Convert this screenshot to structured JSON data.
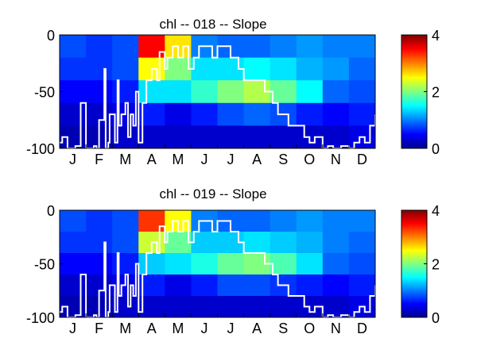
{
  "chart_data": [
    {
      "type": "heatmap",
      "title": "chl -- 018 -- Slope",
      "xlabel": "",
      "ylabel": "",
      "x_tick_labels": [
        "J",
        "F",
        "M",
        "A",
        "M",
        "J",
        "J",
        "A",
        "S",
        "O",
        "N",
        "D"
      ],
      "y_ticks": [
        0,
        -50,
        -100
      ],
      "ylim": [
        -100,
        0
      ],
      "colorbar": {
        "ticks": [
          0,
          2,
          4
        ],
        "range": [
          0,
          4
        ],
        "colormap": "jet"
      },
      "depth_bands_m": [
        0,
        -20,
        -40,
        -60,
        -80,
        -100
      ],
      "band_values": [
        [
          0.8,
          0.7,
          0.8,
          3.5,
          2.6,
          1.0,
          0.9,
          0.9,
          1.0,
          1.1,
          1.0,
          1.0
        ],
        [
          0.7,
          0.7,
          0.8,
          2.5,
          2.0,
          1.4,
          1.4,
          1.5,
          1.4,
          1.2,
          1.1,
          0.9
        ],
        [
          0.5,
          0.5,
          0.6,
          1.4,
          1.4,
          1.7,
          2.0,
          2.2,
          1.9,
          1.5,
          0.9,
          0.8
        ],
        [
          0.3,
          0.3,
          0.4,
          0.6,
          0.4,
          0.6,
          0.8,
          0.9,
          0.8,
          0.6,
          0.5,
          0.6
        ],
        [
          0.2,
          0.2,
          0.3,
          0.3,
          0.3,
          0.3,
          0.3,
          0.3,
          0.3,
          0.3,
          0.3,
          0.4
        ]
      ],
      "line_series": {
        "color": "#ffffff",
        "x_month": [
          0.0,
          0.1,
          0.3,
          0.6,
          0.8,
          1.0,
          1.3,
          1.4,
          1.5,
          1.7,
          1.75,
          1.85,
          1.9,
          2.0,
          2.1,
          2.2,
          2.25,
          2.35,
          2.5,
          2.6,
          2.7,
          2.8,
          2.9,
          3.0,
          3.15,
          3.3,
          3.5,
          3.7,
          3.8,
          4.0,
          4.1,
          4.3,
          4.5,
          4.7,
          4.9,
          5.1,
          5.3,
          5.6,
          5.8,
          6.0,
          6.2,
          6.5,
          6.8,
          7.0,
          7.2,
          7.5,
          7.8,
          8.1,
          8.3,
          8.5,
          8.7,
          9.0,
          9.3,
          9.5,
          9.7,
          10.0,
          10.2,
          10.4,
          10.7,
          11.0,
          11.2,
          11.4,
          11.6,
          11.8,
          12.0
        ],
        "y_depth": [
          -95,
          -90,
          -100,
          -98,
          -60,
          -100,
          -98,
          -100,
          -75,
          -30,
          -100,
          -95,
          -70,
          -70,
          -95,
          -40,
          -80,
          -70,
          -60,
          -90,
          -70,
          -80,
          -50,
          -95,
          -60,
          -40,
          -30,
          -40,
          -15,
          -30,
          -20,
          -10,
          -20,
          -10,
          -30,
          -20,
          -10,
          -10,
          -20,
          -10,
          -10,
          -20,
          -30,
          -40,
          -40,
          -40,
          -50,
          -60,
          -70,
          -70,
          -80,
          -80,
          -90,
          -95,
          -90,
          -100,
          -98,
          -100,
          -98,
          -100,
          -95,
          -90,
          -95,
          -80,
          -70
        ]
      }
    },
    {
      "type": "heatmap",
      "title": "chl -- 019 -- Slope",
      "xlabel": "",
      "ylabel": "",
      "x_tick_labels": [
        "J",
        "F",
        "M",
        "A",
        "M",
        "J",
        "J",
        "A",
        "S",
        "O",
        "N",
        "D"
      ],
      "y_ticks": [
        0,
        -50,
        -100
      ],
      "ylim": [
        -100,
        0
      ],
      "colorbar": {
        "ticks": [
          0,
          2,
          4
        ],
        "range": [
          0,
          4
        ],
        "colormap": "jet"
      },
      "depth_bands_m": [
        0,
        -20,
        -40,
        -60,
        -80,
        -100
      ],
      "band_values": [
        [
          0.8,
          0.7,
          0.8,
          3.3,
          2.5,
          1.0,
          0.9,
          0.9,
          1.0,
          1.1,
          1.0,
          1.0
        ],
        [
          0.7,
          0.7,
          0.8,
          2.3,
          1.9,
          1.3,
          1.3,
          1.4,
          1.3,
          1.2,
          1.0,
          0.9
        ],
        [
          0.5,
          0.5,
          0.6,
          1.3,
          1.4,
          1.6,
          1.9,
          2.0,
          1.8,
          1.4,
          0.9,
          0.8
        ],
        [
          0.3,
          0.3,
          0.4,
          0.6,
          0.4,
          0.6,
          0.8,
          0.8,
          0.7,
          0.6,
          0.5,
          0.6
        ],
        [
          0.2,
          0.2,
          0.3,
          0.3,
          0.3,
          0.3,
          0.3,
          0.3,
          0.3,
          0.3,
          0.3,
          0.4
        ]
      ],
      "line_series": {
        "color": "#ffffff",
        "x_month": [
          0.0,
          0.1,
          0.3,
          0.6,
          0.8,
          1.0,
          1.3,
          1.4,
          1.5,
          1.7,
          1.75,
          1.85,
          1.9,
          2.0,
          2.1,
          2.2,
          2.25,
          2.35,
          2.5,
          2.6,
          2.7,
          2.8,
          2.9,
          3.0,
          3.15,
          3.3,
          3.5,
          3.7,
          3.8,
          4.0,
          4.1,
          4.3,
          4.5,
          4.7,
          4.9,
          5.1,
          5.3,
          5.6,
          5.8,
          6.0,
          6.2,
          6.5,
          6.8,
          7.0,
          7.2,
          7.5,
          7.8,
          8.1,
          8.3,
          8.5,
          8.7,
          9.0,
          9.3,
          9.5,
          9.7,
          10.0,
          10.2,
          10.4,
          10.7,
          11.0,
          11.2,
          11.4,
          11.6,
          11.8,
          12.0
        ],
        "y_depth": [
          -95,
          -90,
          -100,
          -98,
          -60,
          -100,
          -98,
          -100,
          -75,
          -30,
          -100,
          -95,
          -70,
          -70,
          -95,
          -40,
          -80,
          -70,
          -60,
          -90,
          -70,
          -80,
          -50,
          -95,
          -60,
          -40,
          -30,
          -40,
          -15,
          -30,
          -20,
          -10,
          -20,
          -10,
          -30,
          -20,
          -10,
          -10,
          -20,
          -10,
          -10,
          -20,
          -30,
          -40,
          -40,
          -40,
          -50,
          -60,
          -70,
          -70,
          -80,
          -80,
          -90,
          -95,
          -90,
          -100,
          -98,
          -100,
          -98,
          -100,
          -95,
          -90,
          -95,
          -80,
          -70
        ]
      }
    }
  ]
}
